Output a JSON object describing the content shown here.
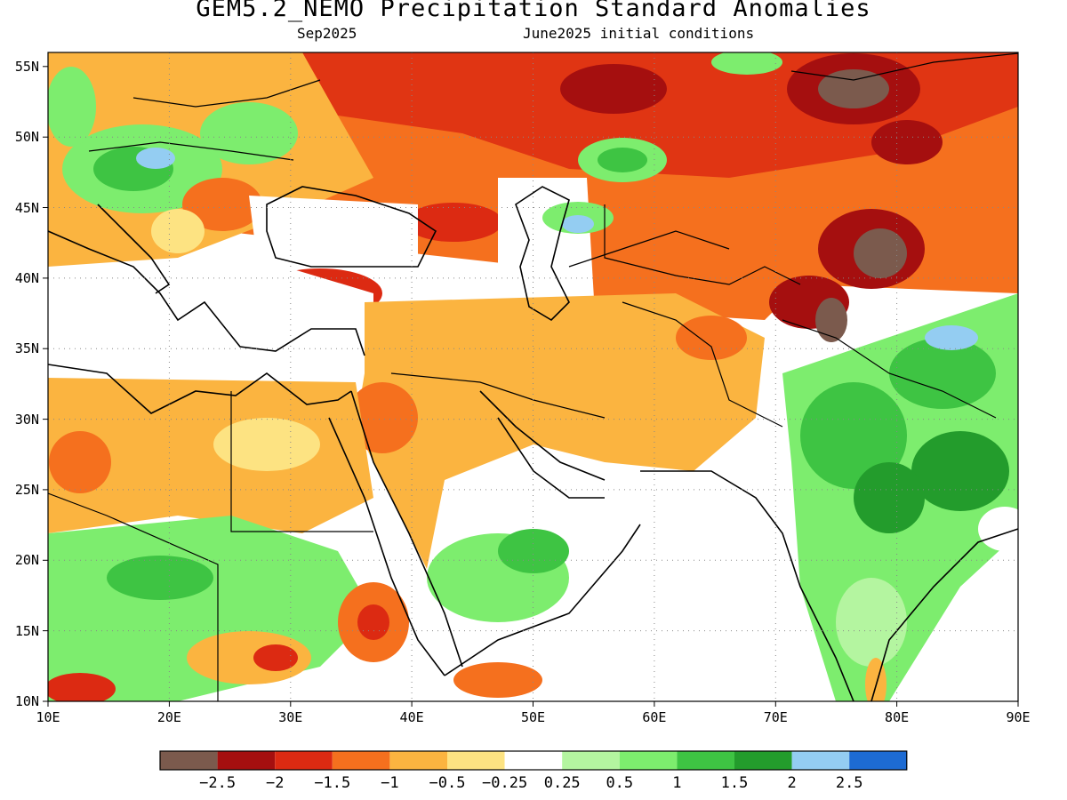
{
  "title": "GEM5.2_NEMO Precipitation Standard Anomalies",
  "subtitle_left": "Sep2025",
  "subtitle_right": "June2025 initial conditions",
  "map": {
    "lon_range": [
      10,
      90
    ],
    "lat_range": [
      10,
      56
    ],
    "lon_ticks": [
      "10E",
      "20E",
      "30E",
      "40E",
      "50E",
      "60E",
      "70E",
      "80E",
      "90E"
    ],
    "lat_ticks": [
      "55N",
      "50N",
      "45N",
      "40N",
      "35N",
      "30N",
      "25N",
      "20N",
      "15N",
      "10N"
    ],
    "gridlines": "dotted"
  },
  "colorbar": {
    "colors": [
      "#7b5a4d",
      "#a50f0f",
      "#dc2a12",
      "#f5701e",
      "#fbb440",
      "#fde382",
      "#ffffff",
      "#b4f5a0",
      "#7ded6e",
      "#3ec443",
      "#239c2c",
      "#94cdf2",
      "#1d6bd3"
    ],
    "labels": [
      "−2.5",
      "−2",
      "−1.5",
      "−1",
      "−0.5",
      "−0.25",
      "0.25",
      "0.5",
      "1",
      "1.5",
      "2",
      "2.5"
    ]
  }
}
